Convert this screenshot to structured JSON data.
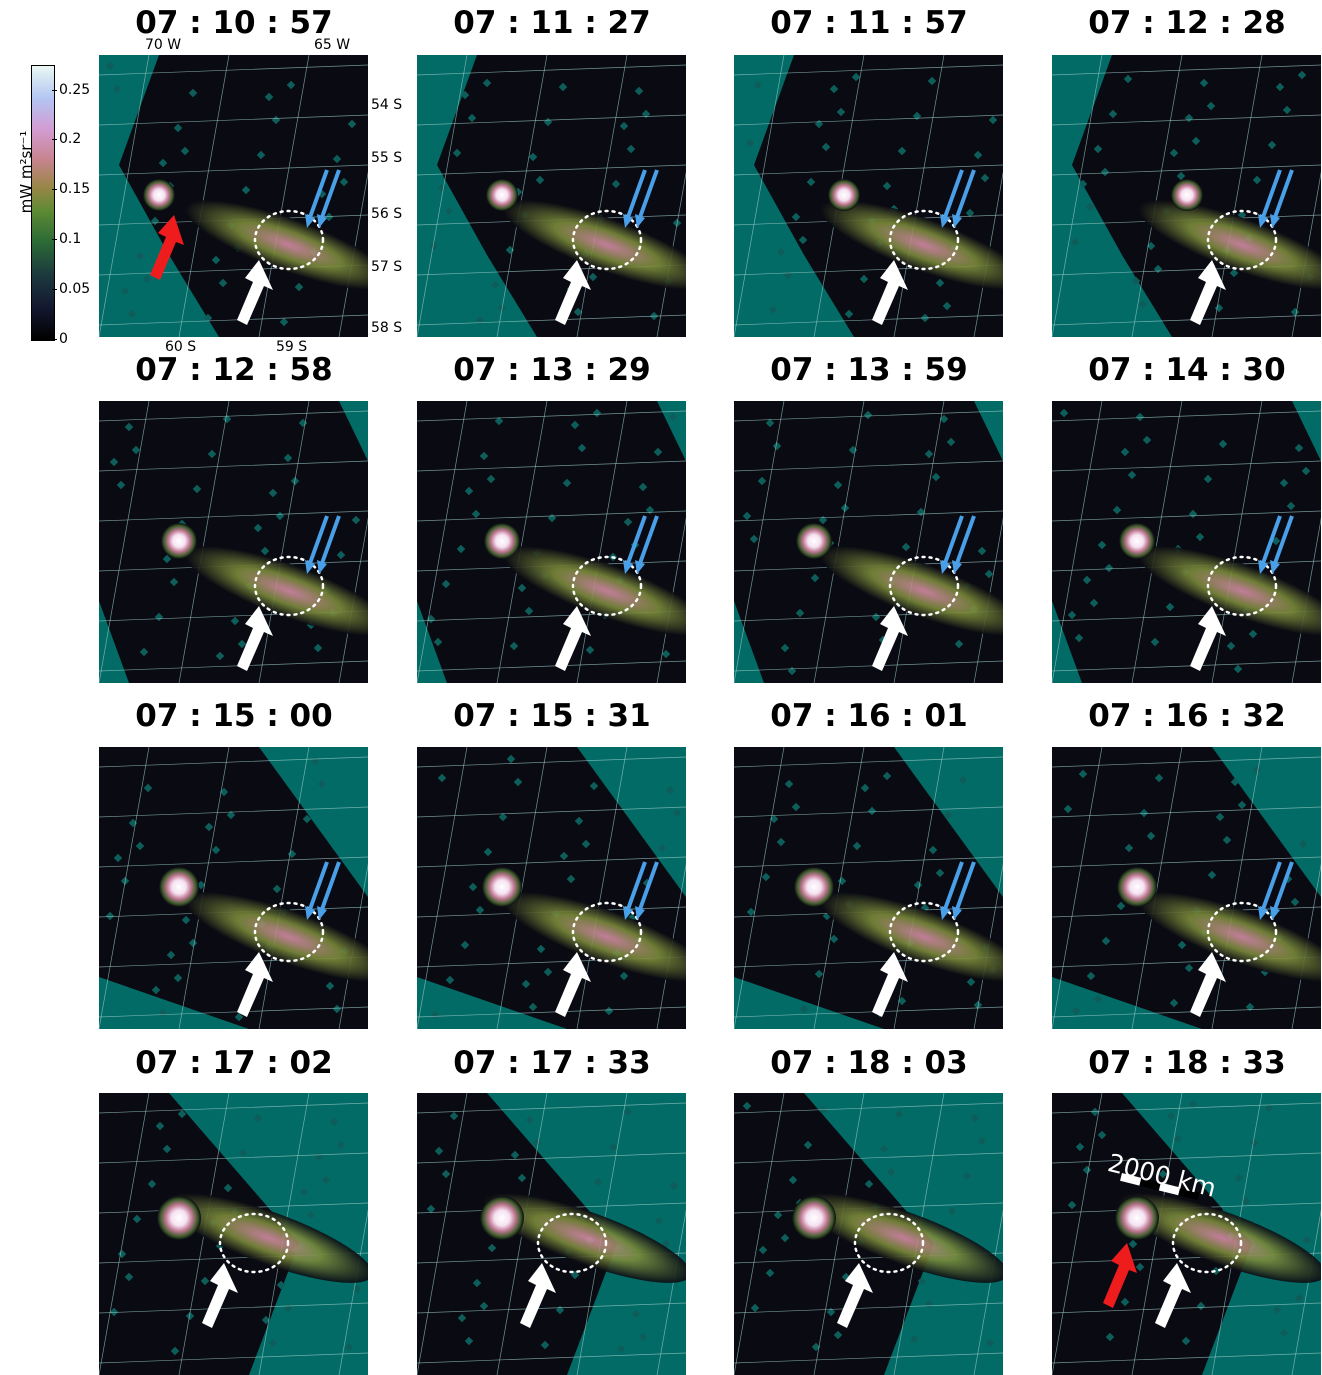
{
  "panels": [
    {
      "time": "07 : 10 : 57",
      "red_arrow": true,
      "blue_arrows": true
    },
    {
      "time": "07 : 11 : 27",
      "red_arrow": false,
      "blue_arrows": true
    },
    {
      "time": "07 : 11 : 57",
      "red_arrow": false,
      "blue_arrows": true
    },
    {
      "time": "07 : 12 : 28",
      "red_arrow": false,
      "blue_arrows": true
    },
    {
      "time": "07 : 12 : 58",
      "red_arrow": false,
      "blue_arrows": true
    },
    {
      "time": "07 : 13 : 29",
      "red_arrow": false,
      "blue_arrows": true
    },
    {
      "time": "07 : 13 : 59",
      "red_arrow": false,
      "blue_arrows": true
    },
    {
      "time": "07 : 14 : 30",
      "red_arrow": false,
      "blue_arrows": true
    },
    {
      "time": "07 : 15 : 00",
      "red_arrow": false,
      "blue_arrows": true
    },
    {
      "time": "07 : 15 : 31",
      "red_arrow": false,
      "blue_arrows": true
    },
    {
      "time": "07 : 16 : 01",
      "red_arrow": false,
      "blue_arrows": true
    },
    {
      "time": "07 : 16 : 32",
      "red_arrow": false,
      "blue_arrows": true
    },
    {
      "time": "07 : 17 : 02",
      "red_arrow": false,
      "blue_arrows": false
    },
    {
      "time": "07 : 17 : 33",
      "red_arrow": false,
      "blue_arrows": false
    },
    {
      "time": "07 : 18 : 03",
      "red_arrow": false,
      "blue_arrows": false
    },
    {
      "time": "07 : 18 : 33",
      "red_arrow": true,
      "blue_arrows": false,
      "scale_bar": "2000 km"
    }
  ],
  "geo_labels": {
    "lon_70w": "70 W",
    "lon_65w": "65 W",
    "lat_54s": "54 S",
    "lat_55s": "55 S",
    "lat_56s": "56 S",
    "lat_57s": "57 S",
    "lat_58s": "58 S",
    "lat_60s": "60 S",
    "lat_59s": "59 S"
  },
  "colorbar": {
    "label": "mW m²sr⁻¹",
    "ticks": [
      "0.25",
      "0.2",
      "0.15",
      "0.1",
      "0.05",
      "0"
    ]
  },
  "colors": {
    "background": "#036b66",
    "emission_dark": "#0a0a12",
    "red_arrow": "#ee1c1c",
    "blue_arrow": "#4aa0e8",
    "white_arrow": "#ffffff"
  }
}
